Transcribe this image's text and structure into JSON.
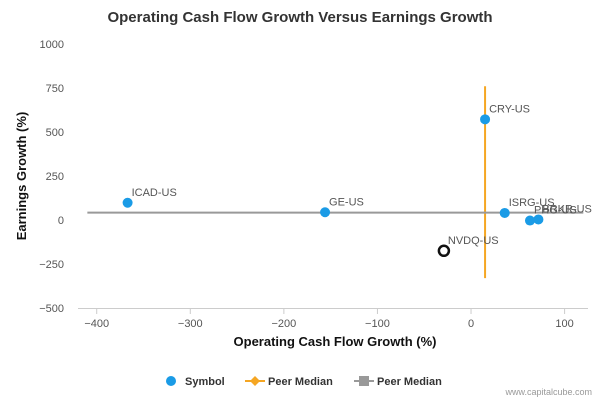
{
  "chart_data": {
    "type": "scatter",
    "title": "Operating Cash Flow Growth Versus Earnings Growth",
    "xlabel": "Operating Cash Flow Growth (%)",
    "ylabel": "Earnings Growth (%)",
    "xlim": [
      -420,
      125
    ],
    "ylim": [
      -500,
      1000
    ],
    "x_ticks": [
      -400,
      -300,
      -200,
      -100,
      0,
      100
    ],
    "x_tick_labels": [
      "−400",
      "−300",
      "−200",
      "−100",
      "0",
      "100"
    ],
    "y_ticks": [
      -500,
      -250,
      0,
      250,
      500,
      750,
      1000
    ],
    "y_tick_labels": [
      "−500",
      "−250",
      "0",
      "250",
      "500",
      "750",
      "1000"
    ],
    "grid": false,
    "legend_position": "bottom",
    "series": [
      {
        "name": "Symbol",
        "color": "#1a9be6",
        "points": [
          {
            "label": "ICAD-US",
            "x": -367,
            "y": 98
          },
          {
            "label": "GE-US",
            "x": -156,
            "y": 44
          },
          {
            "label": "CRY-US",
            "x": 15,
            "y": 572
          },
          {
            "label": "ISRG-US",
            "x": 36,
            "y": 40
          },
          {
            "label": "PHG-US",
            "x": 63,
            "y": -3
          },
          {
            "label": "BRKR-US",
            "x": 72,
            "y": 3
          }
        ]
      },
      {
        "name": "Peer Median",
        "color": "#f5a623",
        "orientation": "vertical",
        "x": 15,
        "y_range": [
          -330,
          760
        ]
      },
      {
        "name": "Peer Median",
        "color": "#999999",
        "orientation": "horizontal",
        "y": 42,
        "x_range": [
          -410,
          120
        ]
      }
    ],
    "highlight": {
      "label": "NVDQ-US",
      "x": -29,
      "y": -175,
      "color": "#111111"
    },
    "credit": "www.capitalcube.com"
  }
}
